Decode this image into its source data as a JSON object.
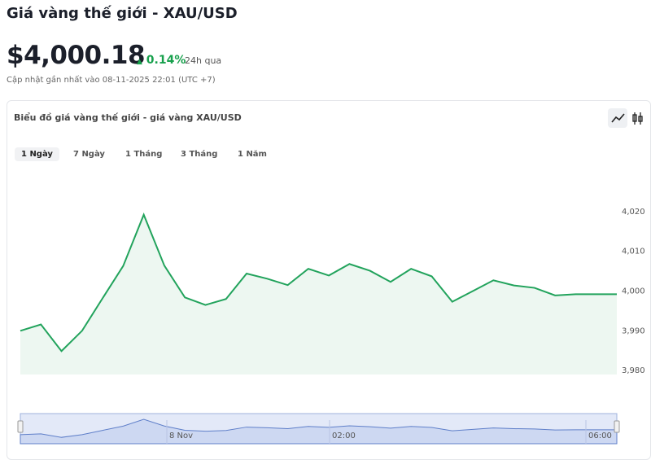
{
  "header": {
    "title": "Giá vàng thế giới - XAU/USD",
    "price": "$4,000.18",
    "change": "0.14%",
    "change_period": "24h qua",
    "updated": "Cập nhật gần nhất vào 08-11-2025 22:01 (UTC +7)"
  },
  "card": {
    "title": "Biểu đồ giá vàng thế giới - giá vàng XAU/USD",
    "tabs": [
      "1 Ngày",
      "7 Ngày",
      "1 Tháng",
      "3 Tháng",
      "1 Năm"
    ],
    "active_tab": 0
  },
  "chart_data": {
    "type": "area",
    "color": "#22a35c",
    "fill": "#edf7f1",
    "values": [
      3990,
      3991.6,
      3984.9,
      3990,
      3998.2,
      4006.3,
      4019.2,
      4006.4,
      3998.4,
      3996.5,
      3998,
      4004.4,
      4003.1,
      4001.5,
      4005.6,
      4003.9,
      4006.8,
      4005.1,
      4002.3,
      4005.6,
      4003.7,
      3997.3,
      4000,
      4002.7,
      4001.4,
      4000.8,
      3998.9,
      3999.2,
      3999.2,
      3999.2
    ],
    "ylim": [
      3979,
      4030
    ],
    "yticks": [
      {
        "value": 3980,
        "label": "3,980"
      },
      {
        "value": 3990,
        "label": "3,990"
      },
      {
        "value": 4000,
        "label": "4,000"
      },
      {
        "value": 4010,
        "label": "4,010"
      },
      {
        "value": 4020,
        "label": "4,020"
      }
    ],
    "navigator_labels": [
      "8 Nov",
      "02:00",
      "06:00"
    ]
  }
}
